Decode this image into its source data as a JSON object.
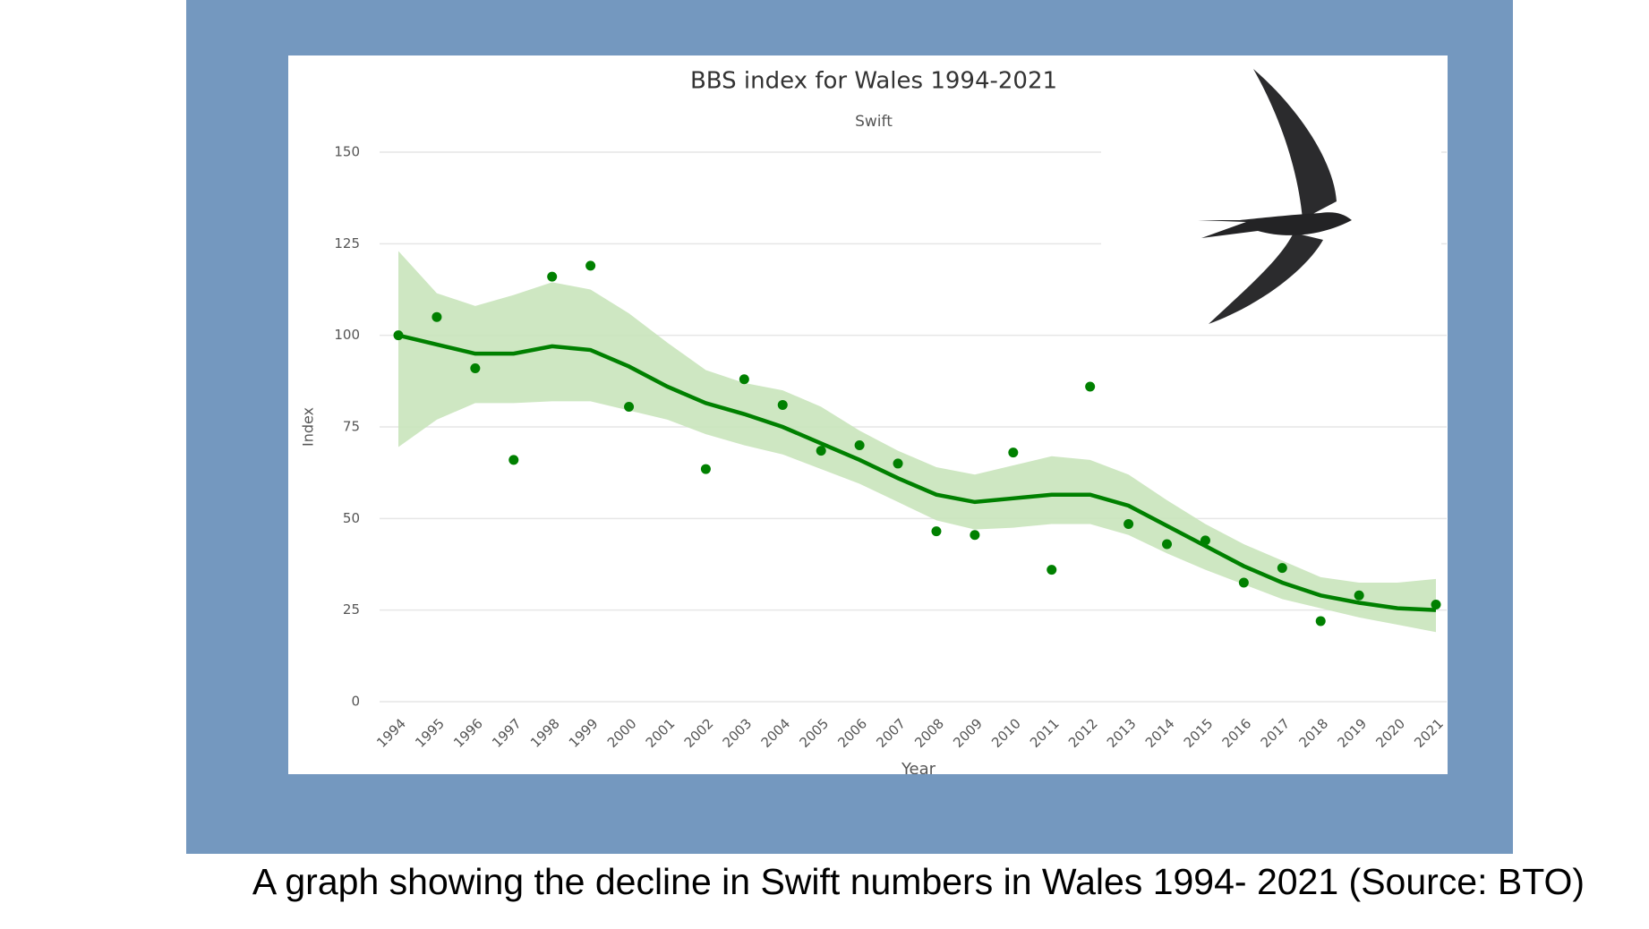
{
  "chart_data": {
    "type": "line",
    "title": "BBS index for Wales 1994-2021",
    "subtitle": "Swift",
    "y_label": "Index",
    "x_label": "Year",
    "categories": [
      "1994",
      "1995",
      "1996",
      "1997",
      "1998",
      "1999",
      "2000",
      "2001",
      "2002",
      "2003",
      "2004",
      "2005",
      "2006",
      "2007",
      "2008",
      "2009",
      "2010",
      "2011",
      "2012",
      "2013",
      "2014",
      "2015",
      "2016",
      "2017",
      "2018",
      "2019",
      "2020",
      "2021"
    ],
    "points": {
      "color": "#008000",
      "values": [
        100,
        105,
        91,
        66,
        116,
        119,
        80.5,
        null,
        63.5,
        88,
        81,
        68.5,
        70,
        65,
        46.5,
        45.5,
        68,
        36,
        86,
        48.5,
        43,
        44,
        32.5,
        36.5,
        22,
        29,
        null,
        26.5
      ]
    },
    "trend": {
      "color": "#008000",
      "values": [
        100,
        97.5,
        95,
        95,
        97,
        96,
        91.5,
        86,
        81.5,
        78.5,
        75,
        70.5,
        66,
        61,
        56.5,
        54.5,
        55.5,
        56.5,
        56.5,
        53.5,
        48,
        42.5,
        37,
        32.5,
        29,
        27,
        25.5,
        25
      ]
    },
    "band": {
      "color": "#c9e4bb",
      "upper": [
        123,
        111.5,
        108,
        111,
        114.5,
        112.5,
        106,
        98,
        90.5,
        87,
        85,
        80.5,
        74,
        68.5,
        64,
        62,
        64.5,
        67,
        66,
        62,
        55,
        48.5,
        43,
        38.5,
        34,
        32.5,
        32.5,
        33.5
      ],
      "lower": [
        69.5,
        77,
        81.5,
        81.5,
        82,
        82,
        79.5,
        77,
        73,
        70,
        67.5,
        63.5,
        59.5,
        54.5,
        49.5,
        47,
        47.5,
        48.5,
        48.5,
        45.5,
        40.5,
        36,
        32,
        28,
        25.5,
        23,
        21,
        19
      ]
    },
    "ylim": [
      0,
      150
    ],
    "yticks": [
      0,
      25,
      50,
      75,
      100,
      125,
      150
    ],
    "grid": true
  },
  "caption": "A graph showing the decline in Swift numbers in Wales  1994- 2021 (Source: BTO)"
}
